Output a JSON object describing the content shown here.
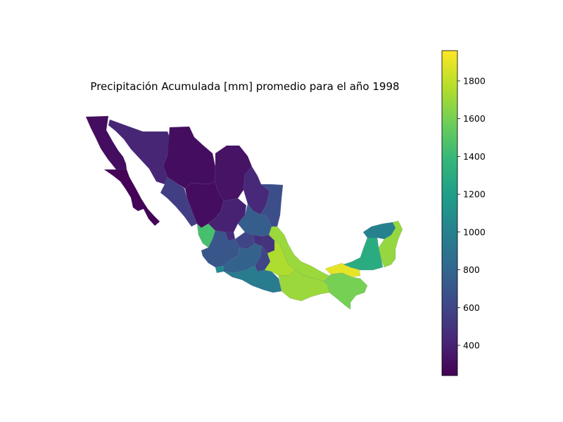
{
  "figure": {
    "title": "Precipitación Acumulada [mm] promedio para el año 1998"
  },
  "colorbar": {
    "colormap": "viridis",
    "colormap_stops": [
      "#440154",
      "#482878",
      "#3e4989",
      "#31688e",
      "#26828e",
      "#1f9e89",
      "#35b779",
      "#6ece58",
      "#b5de2b",
      "#fde725"
    ],
    "range": [
      240,
      1960
    ],
    "ticks": [
      400,
      600,
      800,
      1000,
      1200,
      1400,
      1600,
      1800
    ],
    "tick_labels": [
      "400",
      "600",
      "800",
      "1000",
      "1200",
      "1400",
      "1600",
      "1800"
    ]
  },
  "chart_data": {
    "type": "choropleth",
    "title": "Precipitación Acumulada [mm] promedio para el año 1998",
    "value_range": [
      240,
      1960
    ],
    "regions": [
      {
        "id": "baja-california",
        "value": 300
      },
      {
        "id": "baja-california-sur",
        "value": 250
      },
      {
        "id": "sonora",
        "value": 420
      },
      {
        "id": "chihuahua",
        "value": 300
      },
      {
        "id": "coahuila",
        "value": 330
      },
      {
        "id": "nuevo-leon",
        "value": 430
      },
      {
        "id": "tamaulipas",
        "value": 650
      },
      {
        "id": "sinaloa",
        "value": 560
      },
      {
        "id": "durango",
        "value": 300
      },
      {
        "id": "zacatecas",
        "value": 400
      },
      {
        "id": "san-luis-potosi",
        "value": 750
      },
      {
        "id": "nayarit",
        "value": 1450
      },
      {
        "id": "aguascalientes",
        "value": 460
      },
      {
        "id": "jalisco",
        "value": 700
      },
      {
        "id": "guanajuato",
        "value": 600
      },
      {
        "id": "queretaro",
        "value": 480
      },
      {
        "id": "hidalgo",
        "value": 500
      },
      {
        "id": "colima",
        "value": 1050
      },
      {
        "id": "michoacan",
        "value": 780
      },
      {
        "id": "mexico",
        "value": 600
      },
      {
        "id": "puebla",
        "value": 1750
      },
      {
        "id": "veracruz",
        "value": 1700
      },
      {
        "id": "guerrero",
        "value": 950
      },
      {
        "id": "oaxaca",
        "value": 1700
      },
      {
        "id": "chiapas",
        "value": 1600
      },
      {
        "id": "tabasco",
        "value": 1900
      },
      {
        "id": "campeche",
        "value": 1300
      },
      {
        "id": "yucatan",
        "value": 1000
      },
      {
        "id": "quintana-roo",
        "value": 1680
      }
    ]
  }
}
